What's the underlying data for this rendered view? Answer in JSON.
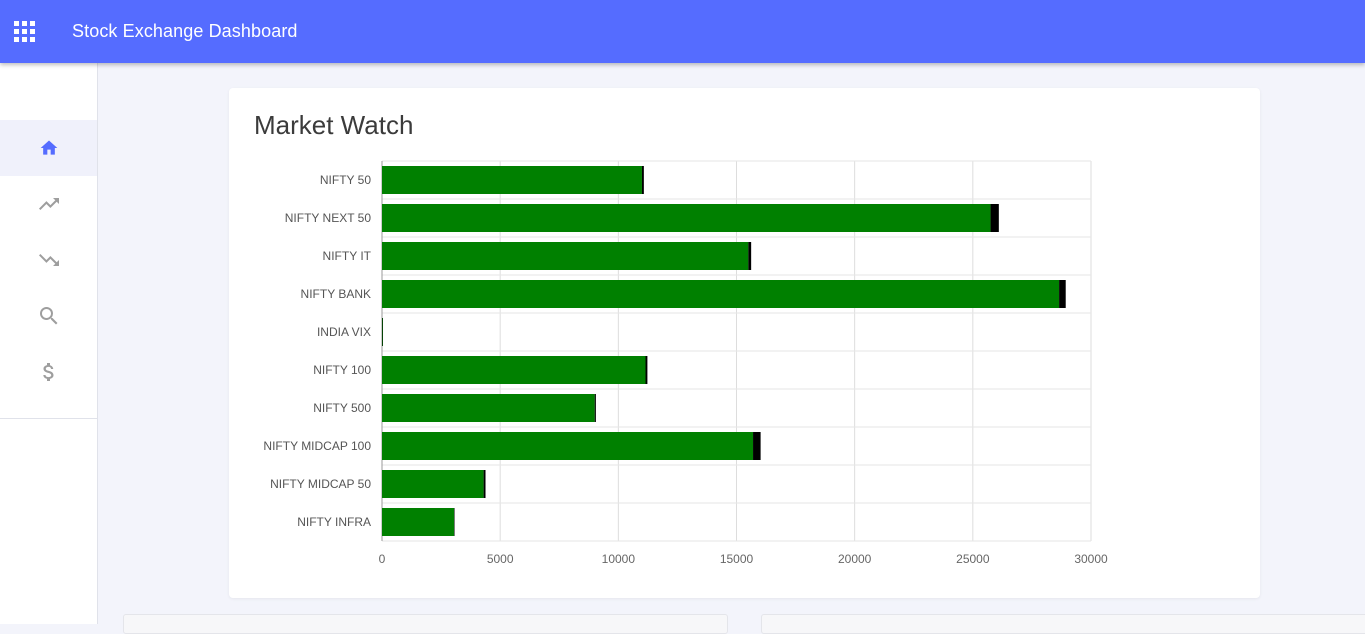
{
  "header": {
    "title": "Stock Exchange Dashboard",
    "menu_icon": "apps-grid-icon",
    "background": "#556cff"
  },
  "sidebar": {
    "items": [
      {
        "name": "home",
        "icon": "home-icon",
        "active": true
      },
      {
        "name": "gainers",
        "icon": "trending-up-icon",
        "active": false
      },
      {
        "name": "losers",
        "icon": "trending-down-icon",
        "active": false
      },
      {
        "name": "search",
        "icon": "search-icon",
        "active": false
      },
      {
        "name": "currency",
        "icon": "dollar-icon",
        "active": false
      }
    ],
    "active_color": "#556cff",
    "icon_color": "#9e9e9e"
  },
  "market_watch": {
    "title": "Market Watch"
  },
  "chart_data": {
    "type": "bar",
    "orientation": "horizontal",
    "stacked": true,
    "categories": [
      "NIFTY 50",
      "NIFTY NEXT 50",
      "NIFTY IT",
      "NIFTY BANK",
      "INDIA VIX",
      "NIFTY 100",
      "NIFTY 500",
      "NIFTY MIDCAP 100",
      "NIFTY MIDCAP 50",
      "NIFTY INFRA"
    ],
    "series": [
      {
        "color": "#008000",
        "values": [
          11000,
          25750,
          15500,
          28650,
          20,
          11150,
          9000,
          15700,
          4300,
          3050
        ]
      },
      {
        "color": "#000000",
        "values": [
          80,
          350,
          120,
          280,
          2,
          80,
          50,
          320,
          80,
          20
        ]
      }
    ],
    "xlim": [
      0,
      30000
    ],
    "xticks": [
      "0",
      "5000",
      "10000",
      "15000",
      "20000",
      "25000",
      "30000"
    ],
    "grid": true
  }
}
